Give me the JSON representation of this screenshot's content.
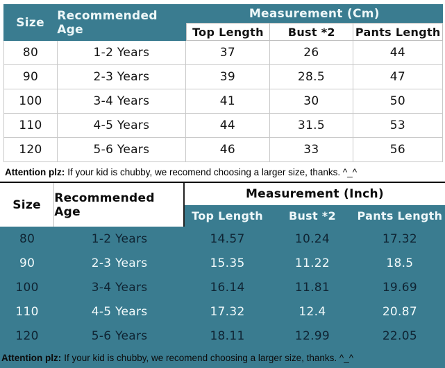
{
  "colors": {
    "teal": "#3A7C90",
    "dark_row_text": "#0F2433",
    "light_row_text": "#F2FAFB",
    "gridline": "#C9C9C9"
  },
  "note": {
    "prefix": "Attention plz:",
    "text": "If your kid is chubby, we recomend choosing a larger size, thanks. ^_^"
  },
  "cm_table": {
    "header": {
      "size": "Size",
      "age": "Recommended Age",
      "group": "Measurement (Cm)",
      "cols": [
        "Top Length",
        "Bust *2",
        "Pants Length"
      ]
    },
    "rows": [
      {
        "size": "80",
        "age": "1-2 Years",
        "values": [
          "37",
          "26",
          "44"
        ]
      },
      {
        "size": "90",
        "age": "2-3 Years",
        "values": [
          "39",
          "28.5",
          "47"
        ]
      },
      {
        "size": "100",
        "age": "3-4 Years",
        "values": [
          "41",
          "30",
          "50"
        ]
      },
      {
        "size": "110",
        "age": "4-5 Years",
        "values": [
          "44",
          "31.5",
          "53"
        ]
      },
      {
        "size": "120",
        "age": "5-6 Years",
        "values": [
          "46",
          "33",
          "56"
        ]
      }
    ]
  },
  "inch_table": {
    "header": {
      "size": "Size",
      "age": "Recommended Age",
      "group": "Measurement (Inch)",
      "cols": [
        "Top Length",
        "Bust *2",
        "Pants Length"
      ]
    },
    "rows": [
      {
        "size": "80",
        "age": "1-2 Years",
        "values": [
          "14.57",
          "10.24",
          "17.32"
        ]
      },
      {
        "size": "90",
        "age": "2-3 Years",
        "values": [
          "15.35",
          "11.22",
          "18.5"
        ]
      },
      {
        "size": "100",
        "age": "3-4 Years",
        "values": [
          "16.14",
          "11.81",
          "19.69"
        ]
      },
      {
        "size": "110",
        "age": "4-5 Years",
        "values": [
          "17.32",
          "12.4",
          "20.87"
        ]
      },
      {
        "size": "120",
        "age": "5-6 Years",
        "values": [
          "18.11",
          "12.99",
          "22.05"
        ]
      }
    ]
  }
}
